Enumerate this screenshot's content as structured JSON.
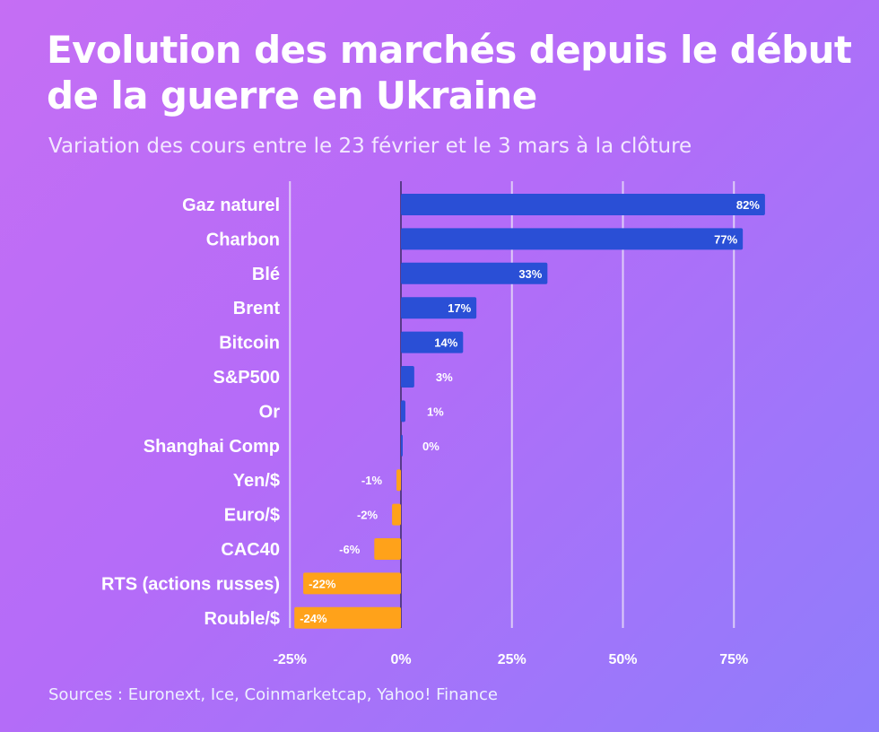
{
  "title": "Evolution des marchés depuis le début de la guerre en Ukraine",
  "subtitle": "Variation des cours entre le 23 février et le 3 mars à la clôture",
  "source": "Sources : Euronext, Ice, Coinmarketcap, Yahoo! Finance",
  "colors": {
    "positive": "#2a4fd6",
    "negative": "#ffa21a",
    "grid": "#e6dcf7",
    "zero_line": "#3a2a66"
  },
  "chart_data": {
    "type": "bar",
    "orientation": "horizontal",
    "categories": [
      "Gaz naturel",
      "Charbon",
      "Blé",
      "Brent",
      "Bitcoin",
      "S&P500",
      "Or",
      "Shanghai Comp",
      "Yen/$",
      "Euro/$",
      "CAC40",
      "RTS (actions russes)",
      "Rouble/$"
    ],
    "values": [
      82,
      77,
      33,
      17,
      14,
      3,
      1,
      0,
      -1,
      -2,
      -6,
      -22,
      -24
    ],
    "value_labels": [
      "82%",
      "77%",
      "33%",
      "17%",
      "14%",
      "3%",
      "1%",
      "0%",
      "-1%",
      "-2%",
      "-6%",
      "-22%",
      "-24%"
    ],
    "xlim": [
      -25,
      80
    ],
    "xticks": [
      -25,
      0,
      25,
      50,
      75
    ],
    "xtick_labels": [
      "-25%",
      "0%",
      "25%",
      "50%",
      "75%"
    ],
    "grid": true
  }
}
